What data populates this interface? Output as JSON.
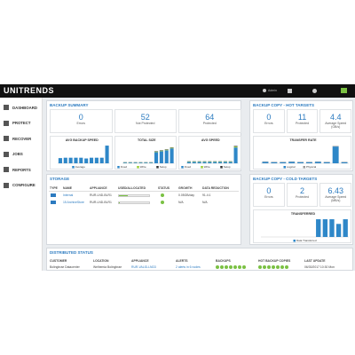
{
  "topbar": {
    "logo": "UNITRENDS",
    "user": "Admin"
  },
  "sidebar": {
    "items": [
      "DASHBOARD",
      "PROTECT",
      "RECOVER",
      "JOBS",
      "REPORTS",
      "CONFIGURE"
    ]
  },
  "backup_summary": {
    "title": "BACKUP SUMMARY",
    "stats": [
      {
        "value": 0,
        "label": "Errors"
      },
      {
        "value": 52,
        "label": "Not Protected"
      },
      {
        "value": 64,
        "label": "Protected"
      }
    ],
    "charts": [
      {
        "type": "bar",
        "title": "AVG BACKUP SPEED",
        "ylim": [
          0,
          100
        ],
        "series": [
          {
            "name": "Average",
            "color": "#2e87c8",
            "values": [
              28,
              30,
              30,
              30,
              30,
              26,
              30,
              30,
              30,
              95
            ]
          }
        ]
      },
      {
        "type": "bar",
        "title": "TOTAL SIZE",
        "ylim": [
          0,
          100
        ],
        "series": [
          {
            "name": "Fixed",
            "color": "#2e87c8",
            "values": [
              4,
              4,
              4,
              4,
              4,
              4,
              60,
              65,
              70,
              80
            ]
          },
          {
            "name": "Write",
            "color": "#9acd32",
            "values": [
              1,
              1,
              1,
              1,
              1,
              1,
              3,
              3,
              3,
              3
            ]
          },
          {
            "name": "Setup",
            "color": "#333333",
            "values": [
              1,
              1,
              1,
              1,
              1,
              1,
              2,
              2,
              2,
              2
            ]
          }
        ]
      },
      {
        "type": "bar",
        "title": "AVG SPEED",
        "ylim": [
          0,
          100
        ],
        "series": [
          {
            "name": "Fixed",
            "color": "#2e87c8",
            "values": [
              8,
              8,
              8,
              8,
              8,
              8,
              8,
              8,
              8,
              85
            ]
          },
          {
            "name": "Write",
            "color": "#9acd32",
            "values": [
              2,
              2,
              2,
              2,
              2,
              2,
              2,
              2,
              2,
              5
            ]
          },
          {
            "name": "Setup",
            "color": "#333333",
            "values": [
              1,
              1,
              1,
              1,
              1,
              1,
              1,
              1,
              1,
              3
            ]
          }
        ]
      }
    ]
  },
  "hot_targets": {
    "title": "BACKUP COPY - HOT TARGETS",
    "stats": [
      {
        "value": 0,
        "label": "Errors"
      },
      {
        "value": 11,
        "label": "Protected"
      },
      {
        "value": 4.4,
        "label": "Average Speed (GB/s)"
      }
    ],
    "charts": [
      {
        "type": "bar",
        "title": "TRANSFER RATE",
        "ylim": [
          0,
          100
        ],
        "series": [
          {
            "name": "Logical",
            "color": "#2e87c8",
            "values": [
              8,
              6,
              6,
              8,
              6,
              6,
              8,
              6,
              90,
              6
            ]
          },
          {
            "name": "Physical",
            "color": "#999999",
            "values": [
              2,
              2,
              2,
              2,
              2,
              2,
              2,
              2,
              3,
              2
            ]
          }
        ]
      }
    ]
  },
  "storage": {
    "title": "STORAGE",
    "columns": [
      "TYPE",
      "NAME",
      "APPLIANCE",
      "USED/ALLOCATED",
      "STATUS",
      "GROWTH",
      "DATA REDUCTION"
    ],
    "rows": [
      {
        "name": "Internal",
        "appliance": "RUR-LND-BLR1",
        "used_percent": 30,
        "growth": "0.05GB/day",
        "reduction": "91.4:1"
      },
      {
        "name": "15 ArchiveStore",
        "appliance": "RUR-LND-BLR1",
        "used_percent": 4,
        "growth": "N/A",
        "reduction": "N/A"
      }
    ]
  },
  "cold_targets": {
    "title": "BACKUP COPY - COLD TARGETS",
    "stats": [
      {
        "value": 0,
        "label": "Errors"
      },
      {
        "value": 2,
        "label": "Protected"
      },
      {
        "value": 6.43,
        "label": "Average Speed (MB/s)"
      }
    ],
    "charts": [
      {
        "type": "bar",
        "title": "TRANSFERRED",
        "ylim": [
          0,
          100
        ],
        "series": [
          {
            "name": "Data Transferred",
            "color": "#2e87c8",
            "values": [
              0,
              0,
              0,
              0,
              0,
              0,
              0,
              0,
              95,
              95,
              95,
              70,
              95
            ]
          }
        ]
      }
    ]
  },
  "distributed": {
    "title": "DISTRIBUTED STATUS",
    "columns": [
      "CUSTOMER",
      "LOCATION",
      "APPLIANCE",
      "ALERTS",
      "BACKUPS",
      "HOT BACKUP COPIES",
      "LAST UPDATE"
    ],
    "rows": [
      {
        "customer": "Bolingbrae Datacenter",
        "location": "Welhemia Bolingbrae",
        "appliance": "RUR-VALID-LND3",
        "alerts": "2 alerts in 6 nodes",
        "last_update": "06/30/2017 10:30 Mon"
      }
    ]
  }
}
